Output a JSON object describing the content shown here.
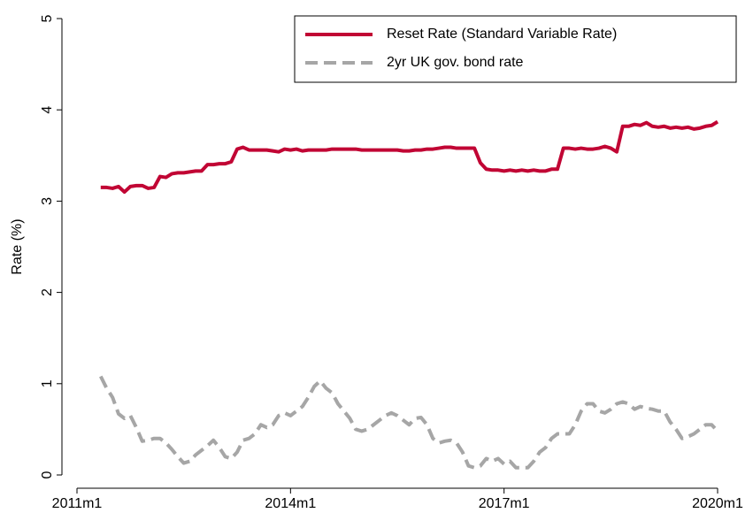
{
  "chart_data": {
    "type": "line",
    "y_label": "Rate (%)",
    "x": [
      "2011m5",
      "2011m6",
      "2011m7",
      "2011m8",
      "2011m9",
      "2011m10",
      "2011m11",
      "2011m12",
      "2012m1",
      "2012m2",
      "2012m3",
      "2012m4",
      "2012m5",
      "2012m6",
      "2012m7",
      "2012m8",
      "2012m9",
      "2012m10",
      "2012m11",
      "2012m12",
      "2013m1",
      "2013m2",
      "2013m3",
      "2013m4",
      "2013m5",
      "2013m6",
      "2013m7",
      "2013m8",
      "2013m9",
      "2013m10",
      "2013m11",
      "2013m12",
      "2014m1",
      "2014m2",
      "2014m3",
      "2014m4",
      "2014m5",
      "2014m6",
      "2014m7",
      "2014m8",
      "2014m9",
      "2014m10",
      "2014m11",
      "2014m12",
      "2015m1",
      "2015m2",
      "2015m3",
      "2015m4",
      "2015m5",
      "2015m6",
      "2015m7",
      "2015m8",
      "2015m9",
      "2015m10",
      "2015m11",
      "2015m12",
      "2016m1",
      "2016m2",
      "2016m3",
      "2016m4",
      "2016m5",
      "2016m6",
      "2016m7",
      "2016m8",
      "2016m9",
      "2016m10",
      "2016m11",
      "2016m12",
      "2017m1",
      "2017m2",
      "2017m3",
      "2017m4",
      "2017m5",
      "2017m6",
      "2017m7",
      "2017m8",
      "2017m9",
      "2017m10",
      "2017m11",
      "2017m12",
      "2018m1",
      "2018m2",
      "2018m3",
      "2018m4",
      "2018m5",
      "2018m6",
      "2018m7",
      "2018m8",
      "2018m9",
      "2018m10",
      "2018m11",
      "2018m12",
      "2019m1",
      "2019m2",
      "2019m3",
      "2019m4",
      "2019m5",
      "2019m6",
      "2019m7",
      "2019m8",
      "2019m9",
      "2019m10",
      "2019m11",
      "2019m12",
      "2020m1"
    ],
    "series": [
      {
        "name": "Reset Rate (Standard Variable Rate)",
        "color": "#c10534",
        "style": "solid",
        "values": [
          3.15,
          3.15,
          3.14,
          3.16,
          3.1,
          3.16,
          3.17,
          3.17,
          3.14,
          3.15,
          3.27,
          3.26,
          3.3,
          3.31,
          3.31,
          3.32,
          3.33,
          3.33,
          3.4,
          3.4,
          3.41,
          3.41,
          3.43,
          3.57,
          3.59,
          3.56,
          3.56,
          3.56,
          3.56,
          3.55,
          3.54,
          3.57,
          3.56,
          3.57,
          3.55,
          3.56,
          3.56,
          3.56,
          3.56,
          3.57,
          3.57,
          3.57,
          3.57,
          3.57,
          3.56,
          3.56,
          3.56,
          3.56,
          3.56,
          3.56,
          3.56,
          3.55,
          3.55,
          3.56,
          3.56,
          3.57,
          3.57,
          3.58,
          3.59,
          3.59,
          3.58,
          3.58,
          3.58,
          3.58,
          3.42,
          3.35,
          3.34,
          3.34,
          3.33,
          3.34,
          3.33,
          3.34,
          3.33,
          3.34,
          3.33,
          3.33,
          3.35,
          3.35,
          3.58,
          3.58,
          3.57,
          3.58,
          3.57,
          3.57,
          3.58,
          3.6,
          3.58,
          3.54,
          3.82,
          3.82,
          3.84,
          3.83,
          3.86,
          3.82,
          3.81,
          3.82,
          3.8,
          3.81,
          3.8,
          3.81,
          3.79,
          3.8,
          3.82,
          3.83,
          3.87
        ]
      },
      {
        "name": "2yr UK gov. bond rate",
        "color": "#a6a6a6",
        "style": "dashed",
        "values": [
          1.08,
          0.95,
          0.85,
          0.67,
          0.62,
          0.65,
          0.52,
          0.37,
          0.38,
          0.4,
          0.4,
          0.35,
          0.28,
          0.2,
          0.13,
          0.15,
          0.22,
          0.27,
          0.32,
          0.38,
          0.3,
          0.2,
          0.18,
          0.25,
          0.38,
          0.4,
          0.45,
          0.55,
          0.52,
          0.55,
          0.65,
          0.68,
          0.65,
          0.7,
          0.75,
          0.85,
          0.97,
          1.03,
          0.95,
          0.9,
          0.78,
          0.7,
          0.62,
          0.5,
          0.48,
          0.5,
          0.55,
          0.6,
          0.65,
          0.68,
          0.65,
          0.6,
          0.55,
          0.62,
          0.63,
          0.55,
          0.4,
          0.35,
          0.37,
          0.38,
          0.35,
          0.25,
          0.1,
          0.08,
          0.1,
          0.18,
          0.15,
          0.18,
          0.12,
          0.15,
          0.08,
          0.08,
          0.08,
          0.15,
          0.25,
          0.3,
          0.4,
          0.45,
          0.45,
          0.45,
          0.55,
          0.7,
          0.78,
          0.78,
          0.7,
          0.68,
          0.72,
          0.78,
          0.8,
          0.78,
          0.72,
          0.75,
          0.73,
          0.72,
          0.7,
          0.7,
          0.58,
          0.5,
          0.4,
          0.42,
          0.45,
          0.5,
          0.55,
          0.55,
          0.48
        ]
      }
    ],
    "xlim": [
      "2011m1",
      "2020m1"
    ],
    "xticks": [
      "2011m1",
      "2014m1",
      "2017m1",
      "2020m1"
    ],
    "ylim": [
      0,
      5
    ],
    "yticks": [
      0,
      1,
      2,
      3,
      4,
      5
    ],
    "grid": false,
    "legend": "top-right"
  }
}
